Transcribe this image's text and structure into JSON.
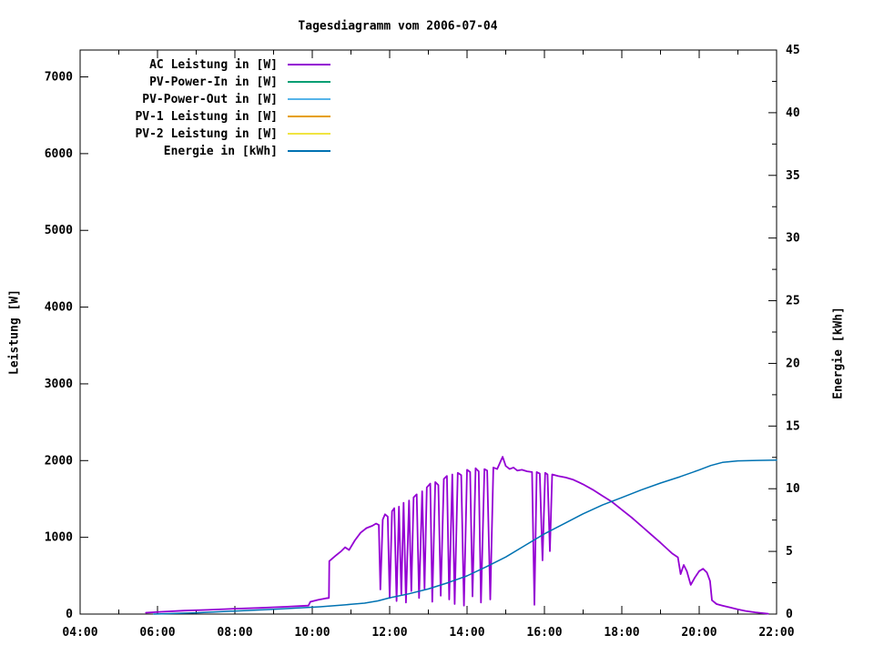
{
  "window": {
    "title": "Tagesdiagramm vom 2006-07-04"
  },
  "chart_data": {
    "type": "line",
    "title": "Tagesdiagramm vom 2006-07-04",
    "background_color": "#ffffff",
    "axes_color": "#000000",
    "grid": false,
    "legend_position": "top-left-inside",
    "x_axis": {
      "label": "",
      "unit": "time",
      "range_hours": [
        4,
        22
      ],
      "major_ticks": [
        {
          "hour": 4,
          "label": "04:00"
        },
        {
          "hour": 6,
          "label": "06:00"
        },
        {
          "hour": 8,
          "label": "08:00"
        },
        {
          "hour": 10,
          "label": "10:00"
        },
        {
          "hour": 12,
          "label": "12:00"
        },
        {
          "hour": 14,
          "label": "14:00"
        },
        {
          "hour": 16,
          "label": "16:00"
        },
        {
          "hour": 18,
          "label": "18:00"
        },
        {
          "hour": 20,
          "label": "20:00"
        },
        {
          "hour": 22,
          "label": "22:00"
        }
      ],
      "minor_step_hours": 1
    },
    "y_left": {
      "label": "Leistung [W]",
      "range": [
        0,
        7350
      ],
      "ticks": [
        0,
        1000,
        2000,
        3000,
        4000,
        5000,
        6000,
        7000
      ]
    },
    "y_right": {
      "label": "Energie [kWh]",
      "range": [
        0,
        45
      ],
      "ticks": [
        0,
        5,
        10,
        15,
        20,
        25,
        30,
        35,
        40,
        45
      ],
      "minor_step": 2.5
    },
    "legend": [
      {
        "label": "AC Leistung in [W]",
        "color": "#9400d3"
      },
      {
        "label": "PV-Power-In in [W]",
        "color": "#009e73"
      },
      {
        "label": "PV-Power-Out in [W]",
        "color": "#56b4e9"
      },
      {
        "label": "PV-1 Leistung in [W]",
        "color": "#e69f00"
      },
      {
        "label": "PV-2 Leistung in [W]",
        "color": "#f0e442"
      },
      {
        "label": "Energie in [kWh]",
        "color": "#0072b2"
      }
    ],
    "series": [
      {
        "name": "AC Leistung in [W]",
        "slug": "ac-leistung",
        "color": "#9400d3",
        "axis": "left",
        "stroke_width": 1.8,
        "points": [
          [
            5.7,
            18
          ],
          [
            6.1,
            30
          ],
          [
            6.7,
            45
          ],
          [
            7.3,
            55
          ],
          [
            8.0,
            70
          ],
          [
            8.6,
            80
          ],
          [
            9.3,
            95
          ],
          [
            9.9,
            110
          ],
          [
            9.95,
            160
          ],
          [
            10.15,
            185
          ],
          [
            10.35,
            205
          ],
          [
            10.43,
            210
          ],
          [
            10.44,
            690
          ],
          [
            10.6,
            760
          ],
          [
            10.75,
            820
          ],
          [
            10.85,
            870
          ],
          [
            10.95,
            835
          ],
          [
            11.1,
            960
          ],
          [
            11.25,
            1060
          ],
          [
            11.4,
            1120
          ],
          [
            11.55,
            1150
          ],
          [
            11.65,
            1180
          ],
          [
            11.72,
            1160
          ],
          [
            11.76,
            320
          ],
          [
            11.82,
            1230
          ],
          [
            11.88,
            1300
          ],
          [
            11.95,
            1270
          ],
          [
            12.0,
            210
          ],
          [
            12.06,
            1340
          ],
          [
            12.12,
            1380
          ],
          [
            12.18,
            170
          ],
          [
            12.24,
            1400
          ],
          [
            12.3,
            260
          ],
          [
            12.36,
            1450
          ],
          [
            12.42,
            150
          ],
          [
            12.5,
            1480
          ],
          [
            12.56,
            300
          ],
          [
            12.62,
            1520
          ],
          [
            12.7,
            1560
          ],
          [
            12.76,
            210
          ],
          [
            12.84,
            1600
          ],
          [
            12.9,
            330
          ],
          [
            12.96,
            1650
          ],
          [
            13.05,
            1700
          ],
          [
            13.1,
            160
          ],
          [
            13.18,
            1720
          ],
          [
            13.26,
            1680
          ],
          [
            13.32,
            240
          ],
          [
            13.4,
            1760
          ],
          [
            13.48,
            1800
          ],
          [
            13.54,
            190
          ],
          [
            13.62,
            1820
          ],
          [
            13.68,
            130
          ],
          [
            13.76,
            1840
          ],
          [
            13.85,
            1810
          ],
          [
            13.92,
            110
          ],
          [
            14.0,
            1880
          ],
          [
            14.08,
            1850
          ],
          [
            14.14,
            230
          ],
          [
            14.22,
            1900
          ],
          [
            14.3,
            1860
          ],
          [
            14.36,
            150
          ],
          [
            14.45,
            1890
          ],
          [
            14.52,
            1870
          ],
          [
            14.6,
            190
          ],
          [
            14.68,
            1910
          ],
          [
            14.78,
            1890
          ],
          [
            14.92,
            2050
          ],
          [
            15.0,
            1930
          ],
          [
            15.1,
            1890
          ],
          [
            15.2,
            1910
          ],
          [
            15.3,
            1870
          ],
          [
            15.42,
            1880
          ],
          [
            15.55,
            1860
          ],
          [
            15.68,
            1850
          ],
          [
            15.74,
            120
          ],
          [
            15.8,
            1850
          ],
          [
            15.88,
            1830
          ],
          [
            15.95,
            700
          ],
          [
            16.02,
            1840
          ],
          [
            16.08,
            1820
          ],
          [
            16.14,
            820
          ],
          [
            16.2,
            1820
          ],
          [
            16.35,
            1800
          ],
          [
            16.55,
            1780
          ],
          [
            16.75,
            1750
          ],
          [
            17.0,
            1690
          ],
          [
            17.25,
            1620
          ],
          [
            17.5,
            1540
          ],
          [
            17.75,
            1460
          ],
          [
            18.0,
            1360
          ],
          [
            18.25,
            1260
          ],
          [
            18.5,
            1150
          ],
          [
            18.75,
            1040
          ],
          [
            19.0,
            930
          ],
          [
            19.15,
            860
          ],
          [
            19.3,
            790
          ],
          [
            19.45,
            740
          ],
          [
            19.52,
            520
          ],
          [
            19.6,
            640
          ],
          [
            19.68,
            560
          ],
          [
            19.78,
            380
          ],
          [
            19.88,
            470
          ],
          [
            20.0,
            560
          ],
          [
            20.1,
            590
          ],
          [
            20.2,
            540
          ],
          [
            20.28,
            430
          ],
          [
            20.33,
            180
          ],
          [
            20.45,
            130
          ],
          [
            20.6,
            110
          ],
          [
            20.8,
            85
          ],
          [
            21.0,
            60
          ],
          [
            21.2,
            40
          ],
          [
            21.45,
            22
          ],
          [
            21.78,
            5
          ]
        ]
      },
      {
        "name": "PV-Power-In in [W]",
        "slug": "pv-power-in",
        "color": "#009e73",
        "axis": "left",
        "stroke_width": 1.5,
        "points": []
      },
      {
        "name": "PV-Power-Out in [W]",
        "slug": "pv-power-out",
        "color": "#56b4e9",
        "axis": "left",
        "stroke_width": 1.5,
        "points": []
      },
      {
        "name": "PV-1 Leistung in [W]",
        "slug": "pv-1",
        "color": "#e69f00",
        "axis": "left",
        "stroke_width": 1.5,
        "points": []
      },
      {
        "name": "PV-2 Leistung in [W]",
        "slug": "pv-2",
        "color": "#f0e442",
        "axis": "left",
        "stroke_width": 1.5,
        "points": []
      },
      {
        "name": "Energie in [kWh]",
        "slug": "energie",
        "color": "#0072b2",
        "axis": "right",
        "stroke_width": 1.5,
        "points": [
          [
            5.9,
            0.0
          ],
          [
            6.5,
            0.05
          ],
          [
            7.0,
            0.1
          ],
          [
            7.7,
            0.2
          ],
          [
            8.3,
            0.28
          ],
          [
            9.0,
            0.38
          ],
          [
            9.6,
            0.48
          ],
          [
            10.2,
            0.58
          ],
          [
            10.7,
            0.7
          ],
          [
            11.0,
            0.78
          ],
          [
            11.35,
            0.87
          ],
          [
            11.7,
            1.05
          ],
          [
            12.0,
            1.3
          ],
          [
            12.5,
            1.62
          ],
          [
            13.0,
            2.0
          ],
          [
            13.5,
            2.5
          ],
          [
            14.0,
            3.05
          ],
          [
            14.5,
            3.78
          ],
          [
            15.0,
            4.55
          ],
          [
            15.5,
            5.48
          ],
          [
            16.0,
            6.4
          ],
          [
            16.5,
            7.2
          ],
          [
            17.0,
            8.0
          ],
          [
            17.5,
            8.7
          ],
          [
            18.0,
            9.3
          ],
          [
            18.5,
            9.9
          ],
          [
            19.0,
            10.45
          ],
          [
            19.5,
            10.95
          ],
          [
            20.0,
            11.5
          ],
          [
            20.3,
            11.85
          ],
          [
            20.6,
            12.1
          ],
          [
            21.0,
            12.22
          ],
          [
            21.5,
            12.26
          ],
          [
            22.0,
            12.28
          ]
        ]
      }
    ]
  }
}
